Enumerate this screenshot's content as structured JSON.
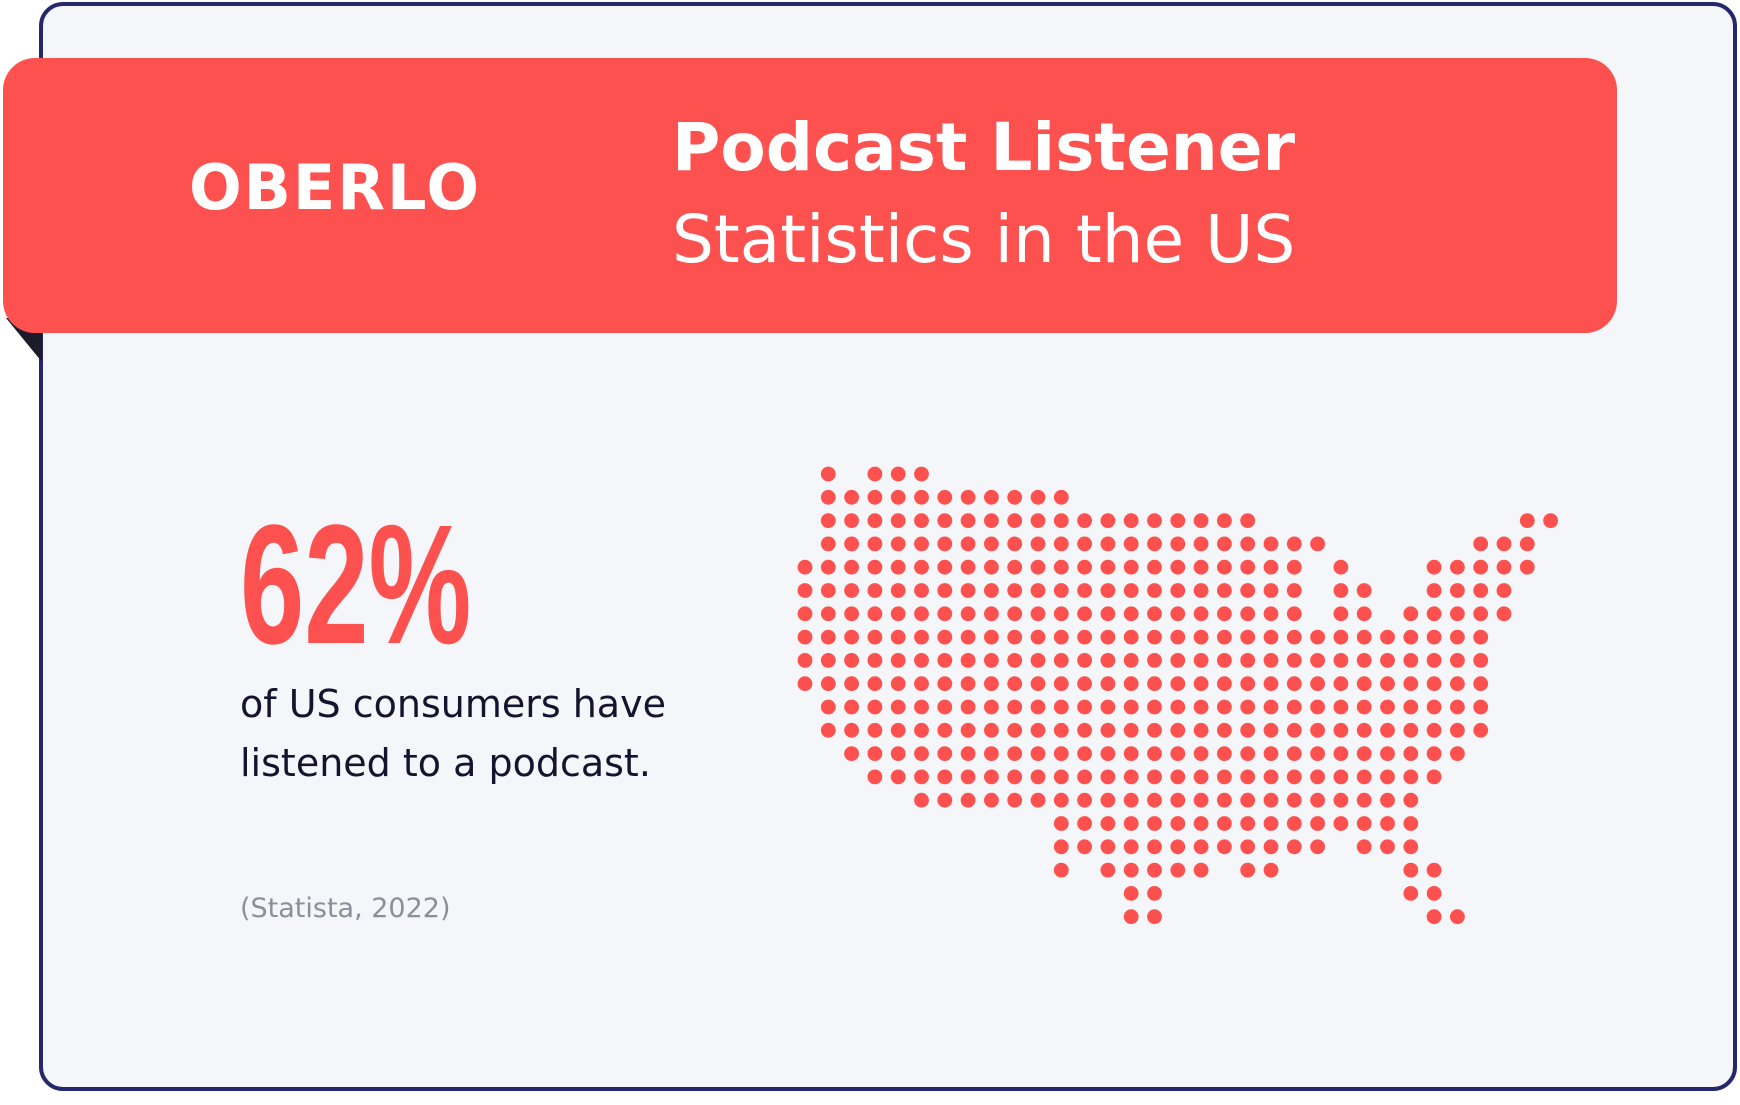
{
  "header": {
    "brand": "OBERLO",
    "title": "Podcast Listener",
    "subtitle": "Statistics in the US"
  },
  "stat": {
    "value": "62%",
    "description": "of US consumers have listened to a podcast.",
    "source": "(Statista, 2022)"
  }
}
